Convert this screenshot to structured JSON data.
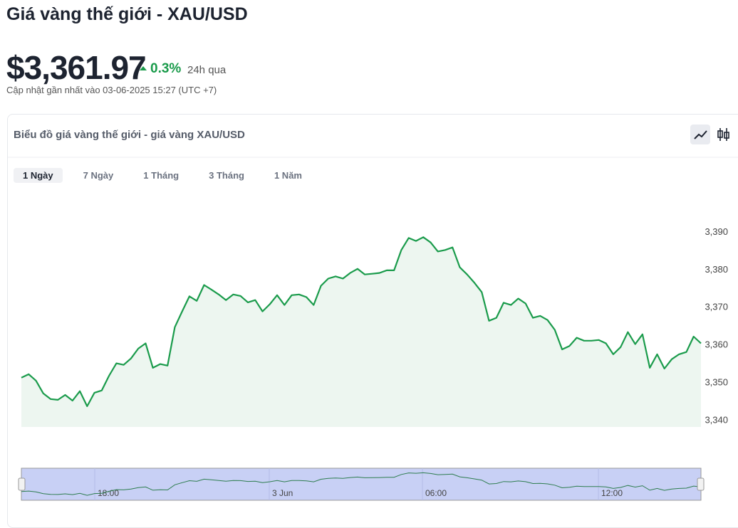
{
  "header": {
    "title": "Giá vàng thế giới - XAU/USD",
    "price": "$3,361.97",
    "change": "0.3%",
    "period": "24h qua",
    "updated": "Cập nhật gần nhất vào 03-06-2025 15:27 (UTC +7)"
  },
  "tabs": [
    "1 Ngày",
    "7 Ngày",
    "1 Tháng",
    "3 Tháng",
    "1 Năm"
  ],
  "chart_data": {
    "type": "line",
    "title": "Biểu đồ giá vàng thế giới - giá vàng XAU/USD",
    "color": "#1a9b4b",
    "values": [
      3351.4,
      3352.3,
      3350.6,
      3347.2,
      3345.7,
      3345.5,
      3346.8,
      3345.3,
      3347.8,
      3343.8,
      3347.4,
      3348.0,
      3351.9,
      3355.2,
      3354.8,
      3356.5,
      3359.1,
      3360.5,
      3354.0,
      3355.0,
      3354.6,
      3364.8,
      3369.0,
      3373.0,
      3371.8,
      3376.0,
      3374.8,
      3373.5,
      3372.0,
      3373.5,
      3373.1,
      3371.4,
      3372.0,
      3369.0,
      3370.9,
      3373.3,
      3370.7,
      3373.3,
      3373.5,
      3372.8,
      3370.7,
      3375.8,
      3377.7,
      3378.3,
      3377.7,
      3379.2,
      3380.3,
      3378.8,
      3379.0,
      3379.2,
      3379.9,
      3379.9,
      3385.3,
      3388.5,
      3387.7,
      3388.7,
      3387.3,
      3384.9,
      3385.3,
      3386.0,
      3380.7,
      3378.8,
      3376.6,
      3374.1,
      3366.5,
      3367.3,
      3371.3,
      3370.7,
      3372.4,
      3371.1,
      3367.3,
      3367.8,
      3366.7,
      3364.1,
      3358.9,
      3359.8,
      3362.0,
      3361.2,
      3361.2,
      3361.4,
      3360.5,
      3357.6,
      3359.5,
      3363.5,
      3360.3,
      3362.9,
      3354.0,
      3357.6,
      3353.8,
      3356.3,
      3357.6,
      3358.2,
      3362.3,
      3360.5
    ],
    "ylim": [
      3338.3,
      3395
    ],
    "yticks": [
      {
        "value": 3340,
        "label": "3,340"
      },
      {
        "value": 3350,
        "label": "3,350"
      },
      {
        "value": 3360,
        "label": "3,360"
      },
      {
        "value": 3370,
        "label": "3,370"
      },
      {
        "value": 3380,
        "label": "3,380"
      },
      {
        "value": 3390,
        "label": "3,390"
      }
    ],
    "navigator_labels": [
      "18:00",
      "3 Jun",
      "06:00",
      "12:00"
    ]
  }
}
